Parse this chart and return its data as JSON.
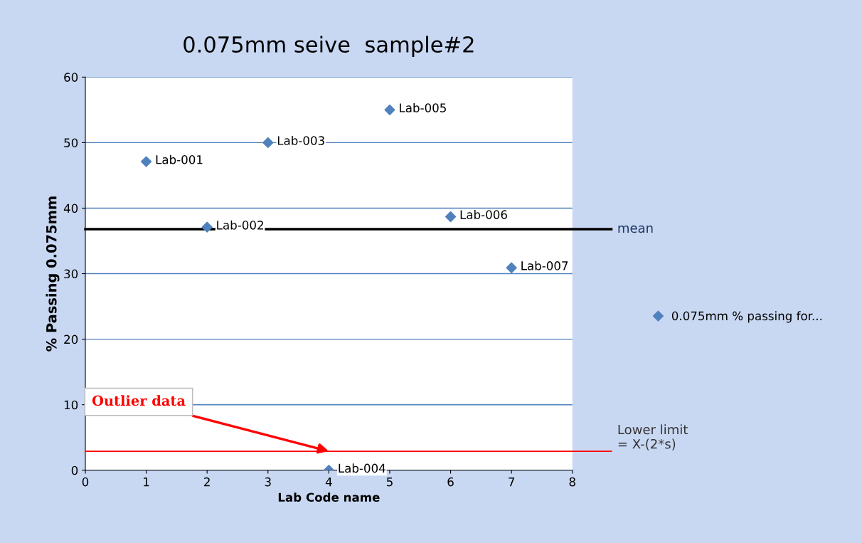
{
  "chart_data": {
    "type": "scatter",
    "title": "0.075mm seive  sample#2",
    "xlabel": "Lab Code name",
    "ylabel": "% Passing 0.075mm",
    "x": [
      1,
      2,
      3,
      4,
      5,
      6,
      7
    ],
    "series": [
      {
        "name": "0.075mm % passing for...",
        "color": "#4f81bd",
        "values": [
          47.1,
          37.1,
          50,
          0,
          55,
          38.7,
          30.9
        ]
      }
    ],
    "xlim": [
      0,
      8
    ],
    "xticks": [
      0,
      1,
      2,
      3,
      4,
      5,
      6,
      7,
      8
    ],
    "ylim": [
      0,
      60
    ],
    "yticks": [
      0,
      10,
      20,
      30,
      40,
      50,
      60
    ],
    "grid": "y",
    "legend": "right",
    "marker": "diamond",
    "ref_lines": [
      {
        "axis": "y",
        "value": 36.8,
        "label": "mean",
        "color": "#000000"
      },
      {
        "axis": "y",
        "value": 2.9,
        "label": "Lower limit\n= X-(2*s)",
        "color": "#ff0000"
      }
    ],
    "annotations": [
      {
        "text": "Lab-001",
        "x": 1,
        "y": 47.1
      },
      {
        "text": "Lab-002",
        "x": 2,
        "y": 37.1
      },
      {
        "text": "Lab-003",
        "x": 3,
        "y": 50
      },
      {
        "text": "Lab-004",
        "x": 4,
        "y": 0
      },
      {
        "text": "Lab-005",
        "x": 5,
        "y": 55
      },
      {
        "text": "Lab-006",
        "x": 6,
        "y": 38.7
      },
      {
        "text": "Lab-007",
        "x": 7,
        "y": 30.9
      },
      {
        "text": "Outlier data",
        "x": 4,
        "y": 2.9
      }
    ]
  }
}
